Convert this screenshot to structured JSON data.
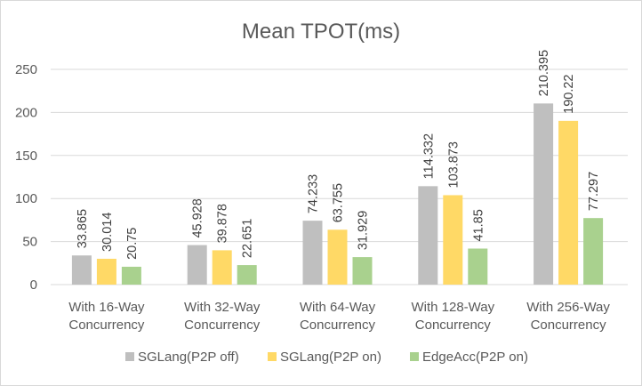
{
  "chart_data": {
    "type": "bar",
    "title": "Mean TPOT(ms)",
    "xlabel": "",
    "ylabel": "",
    "ylim": [
      0,
      250
    ],
    "yticks": [
      0,
      50,
      100,
      150,
      200,
      250
    ],
    "grid": true,
    "legend_position": "bottom",
    "categories": [
      [
        "With 16-Way",
        "Concurrency"
      ],
      [
        "With 32-Way",
        "Concurrency"
      ],
      [
        "With 64-Way",
        "Concurrency"
      ],
      [
        "With 128-Way",
        "Concurrency"
      ],
      [
        "With 256-Way",
        "Concurrency"
      ]
    ],
    "series": [
      {
        "name": "SGLang(P2P off)",
        "color": "#bfbfbf",
        "values": [
          33.865,
          45.928,
          74.233,
          114.332,
          210.395
        ],
        "labels": [
          "33.865",
          "45.928",
          "74.233",
          "114.332",
          "210.395"
        ]
      },
      {
        "name": "SGLang(P2P on)",
        "color": "#ffd966",
        "values": [
          30.014,
          39.878,
          63.755,
          103.873,
          190.22
        ],
        "labels": [
          "30.014",
          "39.878",
          "63.755",
          "103.873",
          "190.22"
        ]
      },
      {
        "name": "EdgeAcc(P2P on)",
        "color": "#a9d18e",
        "values": [
          20.75,
          22.651,
          31.929,
          41.85,
          77.297
        ],
        "labels": [
          "20.75",
          "22.651",
          "31.929",
          "41.85",
          "77.297"
        ]
      }
    ]
  }
}
